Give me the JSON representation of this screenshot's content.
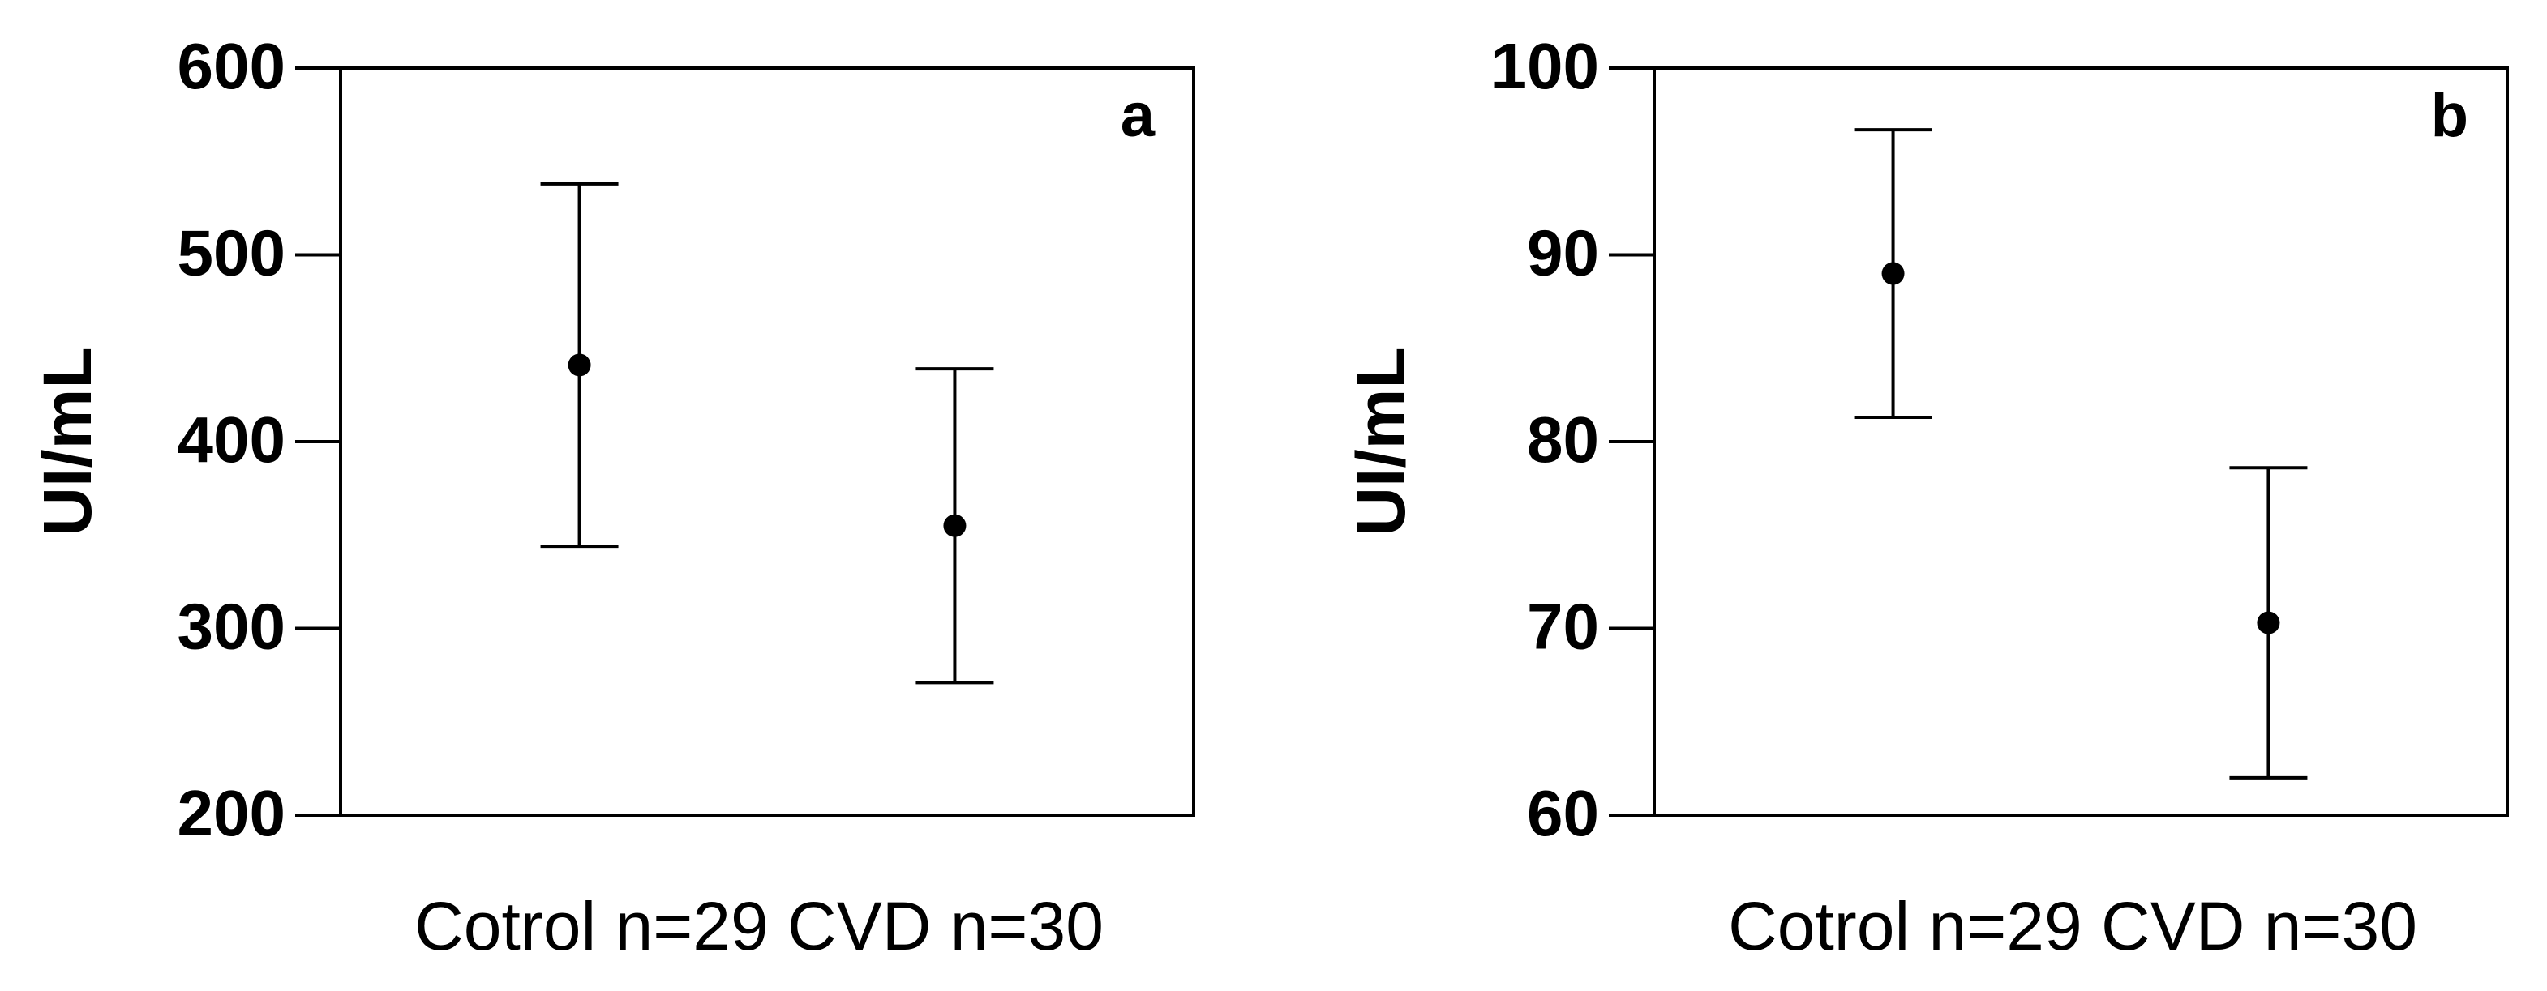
{
  "chart_data": [
    {
      "type": "errorbar",
      "ylabel": "UI/mL",
      "xlabel": "Cotrol n=29 CVD n=30",
      "annotation": "a",
      "categories": [
        null,
        null
      ],
      "series": [
        {
          "color": "#000000",
          "values": [
            441,
            355
          ],
          "errors": [
            97,
            84
          ]
        }
      ],
      "ylim": [
        200,
        600
      ],
      "yticks": [
        200,
        300,
        400,
        500,
        600
      ]
    },
    {
      "type": "errorbar",
      "ylabel": "UI/mL",
      "xlabel": "Cotrol n=29 CVD n=30",
      "annotation": "b",
      "categories": [
        null,
        null
      ],
      "series": [
        {
          "color": "#000000",
          "values": [
            89,
            70.3
          ],
          "errors": [
            7.7,
            8.3
          ]
        }
      ],
      "ylim": [
        60,
        100
      ],
      "yticks": [
        60,
        70,
        80,
        90,
        100
      ]
    }
  ]
}
